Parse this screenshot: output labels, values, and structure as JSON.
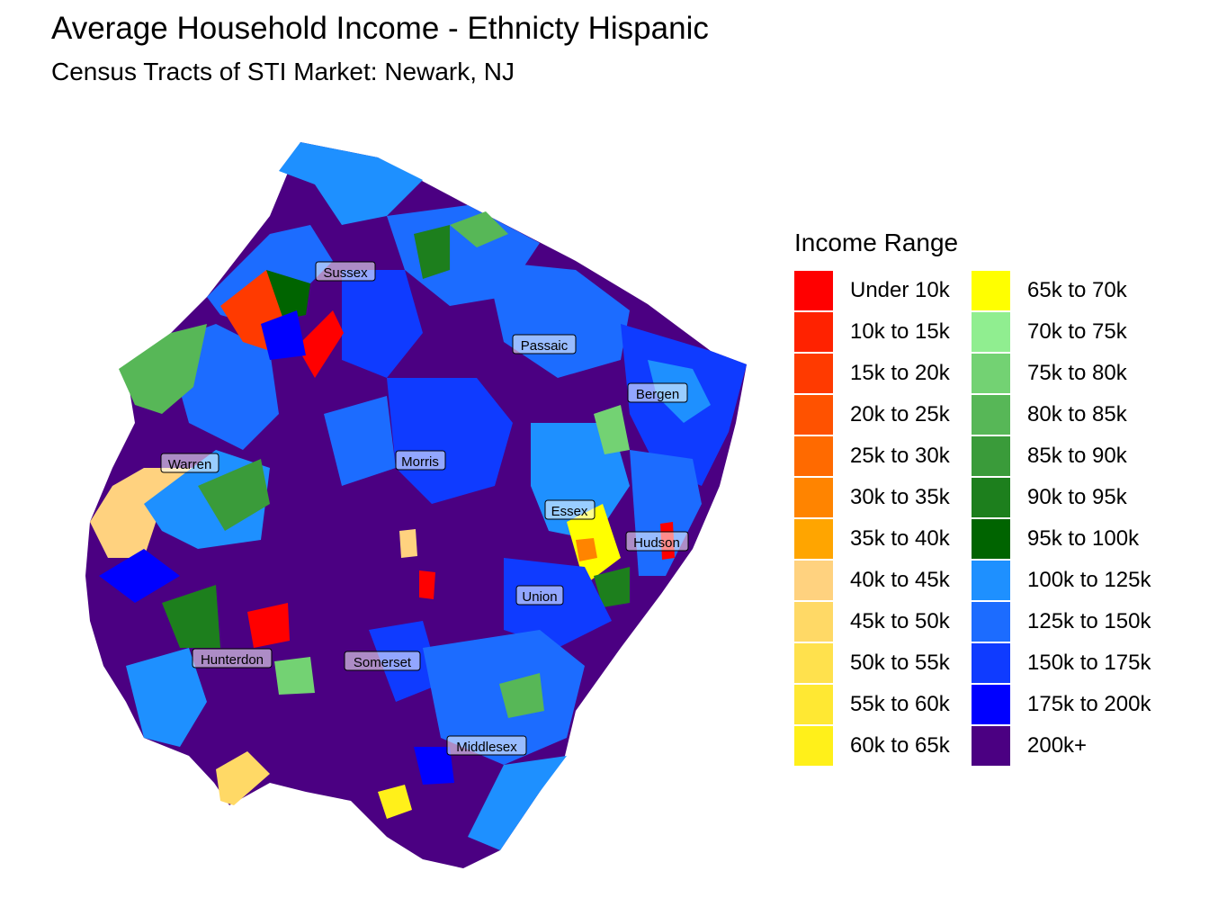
{
  "title": "Average Household Income - Ethnicty Hispanic",
  "subtitle": "Census Tracts of STI Market: Newark, NJ",
  "legend": {
    "title": "Income Range",
    "items": [
      {
        "label": "Under 10k",
        "color": "#FF0000"
      },
      {
        "label": "10k to 15k",
        "color": "#FF2200"
      },
      {
        "label": "15k to 20k",
        "color": "#FF3A00"
      },
      {
        "label": "20k to 25k",
        "color": "#FF5200"
      },
      {
        "label": "25k to 30k",
        "color": "#FF6A00"
      },
      {
        "label": "30k to 35k",
        "color": "#FF8400"
      },
      {
        "label": "35k to 40k",
        "color": "#FFA500"
      },
      {
        "label": "40k to 45k",
        "color": "#FFD27F"
      },
      {
        "label": "45k to 50k",
        "color": "#FFD966"
      },
      {
        "label": "50k to 55k",
        "color": "#FFE14D"
      },
      {
        "label": "55k to 60k",
        "color": "#FFE833"
      },
      {
        "label": "60k to 65k",
        "color": "#FFF01A"
      },
      {
        "label": "65k to 70k",
        "color": "#FFFF00"
      },
      {
        "label": "70k to 75k",
        "color": "#90EE90"
      },
      {
        "label": "75k to 80k",
        "color": "#73D273"
      },
      {
        "label": "80k to 85k",
        "color": "#57B757"
      },
      {
        "label": "85k to 90k",
        "color": "#3A9B3A"
      },
      {
        "label": "90k to 95k",
        "color": "#1D7F1D"
      },
      {
        "label": "95k to 100k",
        "color": "#006400"
      },
      {
        "label": "100k to 125k",
        "color": "#1E90FF"
      },
      {
        "label": "125k to 150k",
        "color": "#1C6CFF"
      },
      {
        "label": "150k to 175k",
        "color": "#0F3BFF"
      },
      {
        "label": "175k to 200k",
        "color": "#0000FF"
      },
      {
        "label": "200k+",
        "color": "#4B0082"
      }
    ]
  },
  "counties": [
    "Sussex",
    "Passaic",
    "Bergen",
    "Warren",
    "Morris",
    "Essex",
    "Hudson",
    "Union",
    "Hunterdon",
    "Somerset",
    "Middlesex"
  ]
}
